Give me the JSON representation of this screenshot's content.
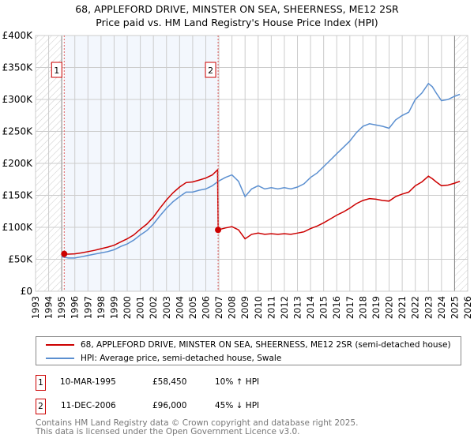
{
  "chart_data": {
    "type": "line",
    "title": "68, APPLEFORD DRIVE, MINSTER ON SEA, SHEERNESS, ME12 2SR",
    "subtitle": "Price paid vs. HM Land Registry's House Price Index (HPI)",
    "xlim": [
      1993,
      2026
    ],
    "ylim": [
      0,
      400000
    ],
    "x_ticks": [
      "1993",
      "1994",
      "1995",
      "1996",
      "1997",
      "1998",
      "1999",
      "2000",
      "2001",
      "2002",
      "2003",
      "2004",
      "2005",
      "2006",
      "2007",
      "2008",
      "2009",
      "2010",
      "2011",
      "2012",
      "2013",
      "2014",
      "2015",
      "2016",
      "2017",
      "2018",
      "2019",
      "2020",
      "2021",
      "2022",
      "2023",
      "2024",
      "2025",
      "2026"
    ],
    "y_ticks": [
      {
        "v": 0,
        "label": "£0"
      },
      {
        "v": 50000,
        "label": "£50K"
      },
      {
        "v": 100000,
        "label": "£100K"
      },
      {
        "v": 150000,
        "label": "£150K"
      },
      {
        "v": 200000,
        "label": "£200K"
      },
      {
        "v": 250000,
        "label": "£250K"
      },
      {
        "v": 300000,
        "label": "£300K"
      },
      {
        "v": 350000,
        "label": "£350K"
      },
      {
        "v": 400000,
        "label": "£400K"
      }
    ],
    "grid": true,
    "series": [
      {
        "name": "68, APPLEFORD DRIVE, MINSTER ON SEA, SHEERNESS, ME12 2SR (semi-detached house)",
        "color": "#cc0000",
        "x": [
          1995.19,
          1995.5,
          1996,
          1996.5,
          1997,
          1997.5,
          1998,
          1998.5,
          1999,
          1999.5,
          2000,
          2000.5,
          2001,
          2001.5,
          2002,
          2002.5,
          2003,
          2003.5,
          2004,
          2004.5,
          2005,
          2005.5,
          2006,
          2006.5,
          2006.9,
          2006.94,
          2007.5,
          2008,
          2008.5,
          2009,
          2009.5,
          2010,
          2010.5,
          2011,
          2011.5,
          2012,
          2012.5,
          2013,
          2013.5,
          2014,
          2014.5,
          2015,
          2015.5,
          2016,
          2016.5,
          2017,
          2017.5,
          2018,
          2018.5,
          2019,
          2019.5,
          2020,
          2020.5,
          2021,
          2021.5,
          2022,
          2022.5,
          2023,
          2023.3,
          2023.6,
          2024,
          2024.5,
          2025,
          2025.4
        ],
        "y": [
          58450,
          58000,
          58500,
          60000,
          62000,
          64000,
          66500,
          69000,
          72000,
          77000,
          82000,
          88000,
          97000,
          105000,
          116000,
          130000,
          143000,
          154000,
          163000,
          170000,
          171000,
          174000,
          177000,
          182000,
          190000,
          96000,
          99000,
          101000,
          96000,
          82000,
          89000,
          91000,
          89000,
          90000,
          89000,
          90000,
          89000,
          91000,
          93000,
          98000,
          102000,
          107000,
          113000,
          119000,
          124000,
          130000,
          137000,
          142000,
          145000,
          144000,
          142000,
          141000,
          148000,
          152000,
          155000,
          165000,
          171000,
          180000,
          176000,
          171000,
          165000,
          166000,
          169000,
          172000
        ]
      },
      {
        "name": "HPI: Average price, semi-detached house, Swale",
        "color": "#5b8fd0",
        "x": [
          1995,
          1995.5,
          1996,
          1996.5,
          1997,
          1997.5,
          1998,
          1998.5,
          1999,
          1999.5,
          2000,
          2000.5,
          2001,
          2001.5,
          2002,
          2002.5,
          2003,
          2003.5,
          2004,
          2004.5,
          2005,
          2005.5,
          2006,
          2006.5,
          2006.95,
          2007.5,
          2008,
          2008.5,
          2009,
          2009.5,
          2010,
          2010.5,
          2011,
          2011.5,
          2012,
          2012.5,
          2013,
          2013.5,
          2014,
          2014.5,
          2015,
          2015.5,
          2016,
          2016.5,
          2017,
          2017.5,
          2018,
          2018.5,
          2019,
          2019.5,
          2020,
          2020.5,
          2021,
          2021.5,
          2022,
          2022.5,
          2023,
          2023.3,
          2023.6,
          2024,
          2024.5,
          2025,
          2025.4
        ],
        "y": [
          54000,
          52000,
          52000,
          54000,
          56000,
          58000,
          60000,
          62000,
          65000,
          70000,
          74000,
          80000,
          88000,
          95000,
          105000,
          118000,
          130000,
          140000,
          148000,
          155000,
          155000,
          158000,
          160000,
          165000,
          172000,
          178000,
          182000,
          172000,
          148000,
          160000,
          165000,
          160000,
          162000,
          160000,
          162000,
          160000,
          163000,
          168000,
          178000,
          185000,
          195000,
          205000,
          215000,
          225000,
          235000,
          248000,
          258000,
          262000,
          260000,
          258000,
          255000,
          268000,
          275000,
          280000,
          300000,
          310000,
          325000,
          320000,
          310000,
          298000,
          300000,
          305000,
          308000
        ]
      }
    ],
    "annotations": [
      {
        "label": "1",
        "x": 1995.19,
        "y": 58450
      },
      {
        "label": "2",
        "x": 2006.94,
        "y": 96000
      }
    ],
    "shaded_range": [
      1995.19,
      2006.94
    ],
    "hatched_ranges": [
      [
        1993,
        1995
      ],
      [
        2025,
        2026
      ]
    ],
    "legend_position": "below"
  },
  "sales": [
    {
      "num": "1",
      "date": "10-MAR-1995",
      "price": "£58,450",
      "hpi": "10% ↑ HPI"
    },
    {
      "num": "2",
      "date": "11-DEC-2006",
      "price": "£96,000",
      "hpi": "45% ↓ HPI"
    }
  ],
  "footer": [
    "Contains HM Land Registry data © Crown copyright and database right 2025.",
    "This data is licensed under the Open Government Licence v3.0."
  ]
}
